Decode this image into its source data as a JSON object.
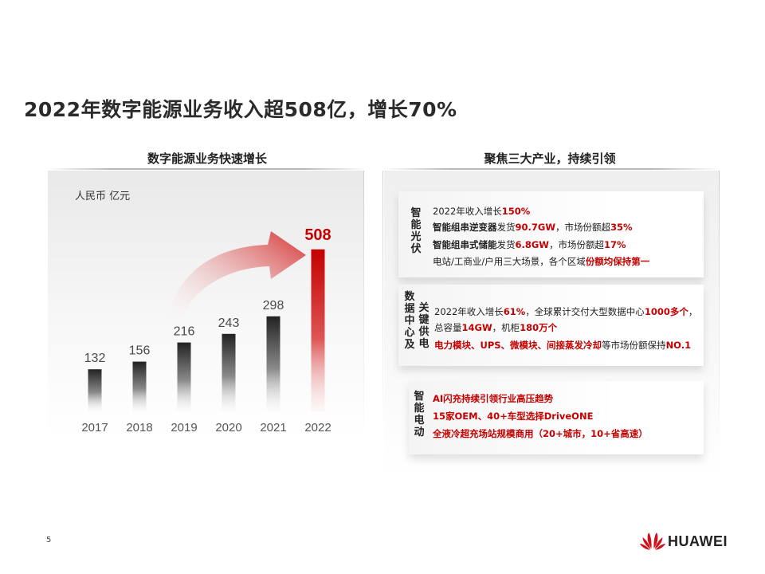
{
  "title": "2022年数字能源业务收入超508亿，增长70%",
  "left": {
    "heading": "数字能源业务快速增长",
    "unit": "人民币  亿元"
  },
  "right": {
    "heading": "聚焦三大产业，持续引领",
    "cards": [
      {
        "label": "智能光伏",
        "lines": [
          [
            "2022年收入增长",
            "150%"
          ],
          [
            "智能组串逆变器",
            "发货",
            "90.7GW",
            "，市场份额超",
            "35%"
          ],
          [
            "智能组串式储能",
            "发货",
            "6.8GW",
            "，市场份额超",
            "17%"
          ],
          [
            "电站/工商业/户用三大场景，各个区域",
            "份额均保持第一"
          ]
        ]
      },
      {
        "label_a": "数据中心及",
        "label_b": "关键供电",
        "lines": [
          [
            "2022年收入增长",
            "61%",
            "，全球累计交付大型数据中心",
            "1000多个",
            "，"
          ],
          [
            "总容量",
            "14GW",
            "，机柜",
            "180万个"
          ],
          [
            "电力模块、UPS、微模块、间接蒸发冷却",
            "等市场份额保持",
            "NO.1"
          ]
        ]
      },
      {
        "label": "智能电动",
        "lines": [
          "AI闪充持续引领行业高压趋势",
          "15家OEM、40+车型选择DriveONE",
          "全液冷超充场站规模商用（20+城市，10+省高速）"
        ]
      }
    ]
  },
  "page_number": "5",
  "brand": "HUAWEI",
  "colors": {
    "accent": "#c40000",
    "bar_dark": "#2a2a2a"
  },
  "chart_data": {
    "type": "bar",
    "categories": [
      "2017",
      "2018",
      "2019",
      "2020",
      "2021",
      "2022"
    ],
    "values": [
      132,
      156,
      216,
      243,
      298,
      508
    ],
    "title": "",
    "xlabel": "",
    "ylabel": "人民币  亿元",
    "highlight_index": 5,
    "highlight_color": "#c40000",
    "legend": "none",
    "grid": false
  }
}
